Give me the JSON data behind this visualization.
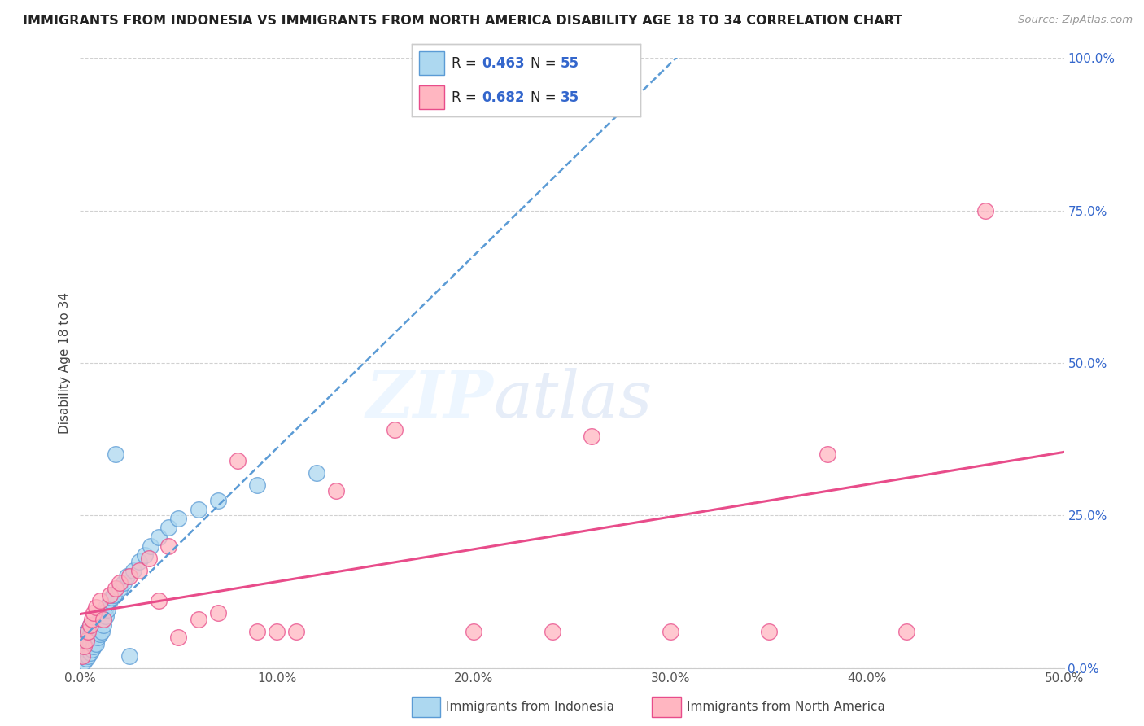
{
  "title": "IMMIGRANTS FROM INDONESIA VS IMMIGRANTS FROM NORTH AMERICA DISABILITY AGE 18 TO 34 CORRELATION CHART",
  "source": "Source: ZipAtlas.com",
  "ylabel": "Disability Age 18 to 34",
  "xlim": [
    0,
    0.5
  ],
  "ylim": [
    0,
    1.0
  ],
  "xticks": [
    0.0,
    0.1,
    0.2,
    0.3,
    0.4,
    0.5
  ],
  "xtick_labels": [
    "0.0%",
    "10.0%",
    "20.0%",
    "30.0%",
    "40.0%",
    "50.0%"
  ],
  "yticks": [
    0.0,
    0.25,
    0.5,
    0.75,
    1.0
  ],
  "ytick_labels": [
    "0.0%",
    "25.0%",
    "50.0%",
    "75.0%",
    "100.0%"
  ],
  "series1_name": "Immigrants from Indonesia",
  "series1_color": "#ADD8F0",
  "series1_edge": "#5B9BD5",
  "series1_R": 0.463,
  "series1_N": 55,
  "series1_x": [
    0.001,
    0.001,
    0.001,
    0.002,
    0.002,
    0.002,
    0.002,
    0.003,
    0.003,
    0.003,
    0.003,
    0.004,
    0.004,
    0.004,
    0.005,
    0.005,
    0.005,
    0.005,
    0.006,
    0.006,
    0.006,
    0.007,
    0.007,
    0.007,
    0.008,
    0.008,
    0.009,
    0.009,
    0.01,
    0.01,
    0.011,
    0.011,
    0.012,
    0.013,
    0.013,
    0.014,
    0.015,
    0.016,
    0.017,
    0.018,
    0.02,
    0.022,
    0.024,
    0.025,
    0.027,
    0.03,
    0.033,
    0.036,
    0.04,
    0.045,
    0.05,
    0.06,
    0.07,
    0.09,
    0.12
  ],
  "series1_y": [
    0.02,
    0.035,
    0.05,
    0.01,
    0.025,
    0.04,
    0.055,
    0.015,
    0.03,
    0.045,
    0.06,
    0.02,
    0.04,
    0.06,
    0.025,
    0.04,
    0.055,
    0.07,
    0.03,
    0.05,
    0.065,
    0.035,
    0.055,
    0.07,
    0.04,
    0.06,
    0.05,
    0.075,
    0.055,
    0.08,
    0.06,
    0.09,
    0.07,
    0.085,
    0.1,
    0.095,
    0.11,
    0.115,
    0.12,
    0.35,
    0.13,
    0.14,
    0.15,
    0.02,
    0.16,
    0.175,
    0.185,
    0.2,
    0.215,
    0.23,
    0.245,
    0.26,
    0.275,
    0.3,
    0.32
  ],
  "series2_name": "Immigrants from North America",
  "series2_color": "#FFB6C1",
  "series2_edge": "#E84C8A",
  "series2_R": 0.682,
  "series2_N": 35,
  "series2_x": [
    0.001,
    0.002,
    0.003,
    0.004,
    0.005,
    0.006,
    0.007,
    0.008,
    0.01,
    0.012,
    0.015,
    0.018,
    0.02,
    0.025,
    0.03,
    0.035,
    0.04,
    0.045,
    0.05,
    0.06,
    0.07,
    0.08,
    0.09,
    0.1,
    0.11,
    0.13,
    0.16,
    0.2,
    0.24,
    0.26,
    0.3,
    0.35,
    0.38,
    0.42,
    0.46
  ],
  "series2_y": [
    0.02,
    0.035,
    0.045,
    0.06,
    0.07,
    0.08,
    0.09,
    0.1,
    0.11,
    0.08,
    0.12,
    0.13,
    0.14,
    0.15,
    0.16,
    0.18,
    0.11,
    0.2,
    0.05,
    0.08,
    0.09,
    0.34,
    0.06,
    0.06,
    0.06,
    0.29,
    0.39,
    0.06,
    0.06,
    0.38,
    0.06,
    0.06,
    0.35,
    0.06,
    0.75
  ],
  "trendline1_color": "#5B9BD5",
  "trendline2_color": "#E84C8A",
  "watermark_zip": "ZIP",
  "watermark_atlas": "atlas",
  "background_color": "#ffffff",
  "grid_color": "#cccccc",
  "tick_color_y": "#3366CC",
  "tick_color_x": "#555555"
}
